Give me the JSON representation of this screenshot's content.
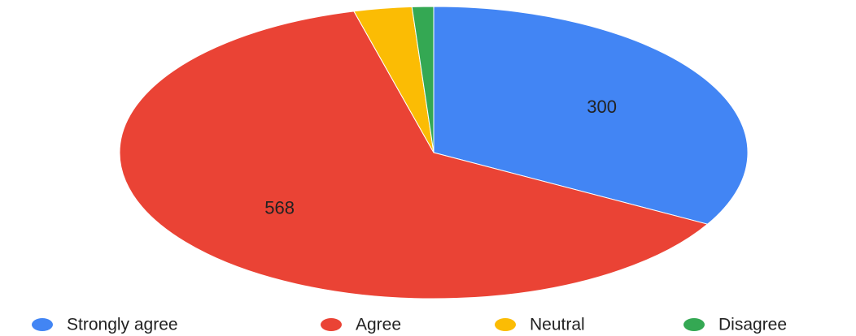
{
  "chart_data": {
    "type": "pie",
    "categories": [
      "Strongly agree",
      "Agree",
      "Neutral",
      "Disagree"
    ],
    "values": [
      300,
      568,
      27,
      10
    ],
    "colors": [
      "#4285f4",
      "#ea4335",
      "#fbbc04",
      "#34a853"
    ],
    "data_labels": [
      "300",
      "568",
      "",
      ""
    ],
    "start_angle_deg": 0,
    "direction": "clockwise",
    "legend_position": "bottom",
    "title": ""
  }
}
